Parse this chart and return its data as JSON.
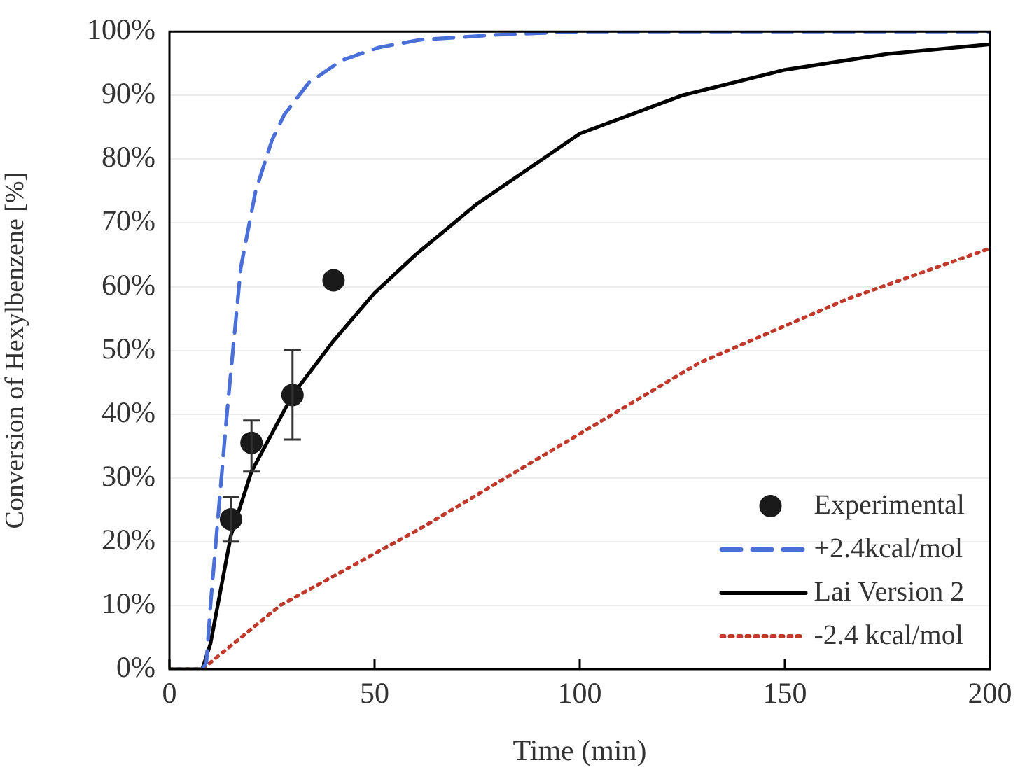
{
  "chart_data": {
    "type": "line",
    "xlabel": "Time (min)",
    "ylabel": "Conversion of Hexylbenzene [%]",
    "xlim": [
      0,
      200
    ],
    "xticks": [
      0,
      50,
      100,
      150,
      200
    ],
    "ylim": [
      0,
      100
    ],
    "yticks": [
      {
        "value": 0,
        "label": "0%"
      },
      {
        "value": 10,
        "label": "10%"
      },
      {
        "value": 20,
        "label": "20%"
      },
      {
        "value": 30,
        "label": "30%"
      },
      {
        "value": 40,
        "label": "40%"
      },
      {
        "value": 50,
        "label": "50%"
      },
      {
        "value": 60,
        "label": "60%"
      },
      {
        "value": 70,
        "label": "70%"
      },
      {
        "value": 80,
        "label": "80%"
      },
      {
        "value": 90,
        "label": "90%"
      },
      {
        "value": 100,
        "label": "100%"
      }
    ],
    "grid": "y",
    "legend": "bottom right",
    "series": [
      {
        "name": "Experimental",
        "type": "scatter",
        "marker": "circle",
        "color": "#1a1a1a",
        "x": [
          15,
          20,
          30,
          40
        ],
        "values": [
          23.5,
          35.5,
          43,
          61
        ],
        "errors": [
          [
            20,
            27
          ],
          [
            31,
            39
          ],
          [
            36,
            50
          ],
          null
        ]
      },
      {
        "name": "+2.4kcal/mol",
        "marker": "none",
        "line_style": "dashed",
        "color": "#4a6fd8",
        "x": [
          8,
          9,
          10,
          12,
          14,
          17.4,
          21,
          25,
          28,
          34,
          42,
          51,
          61,
          80,
          100,
          200
        ],
        "values": [
          0,
          1,
          10,
          25,
          40,
          63,
          75,
          83,
          87,
          92,
          95.5,
          97.5,
          98.7,
          99.5,
          100,
          100
        ]
      },
      {
        "name": "Lai Version 2",
        "marker": "none",
        "line_style": "solid",
        "color": "#000000",
        "x": [
          0,
          8,
          10,
          15,
          20,
          30,
          40,
          50,
          60,
          75,
          100,
          125,
          150,
          175,
          200
        ],
        "values": [
          0,
          0,
          4,
          21,
          31,
          43,
          51.5,
          59,
          65,
          73,
          84,
          90,
          94,
          96.5,
          98
        ]
      },
      {
        "name": "-2.4 kcal/mol",
        "marker": "none",
        "line_style": "dotted",
        "color": "#c0392b",
        "x": [
          0,
          8,
          27,
          61,
          95,
          129,
          165,
          200
        ],
        "values": [
          0,
          0,
          10,
          22,
          35,
          48,
          58,
          66
        ]
      }
    ]
  }
}
